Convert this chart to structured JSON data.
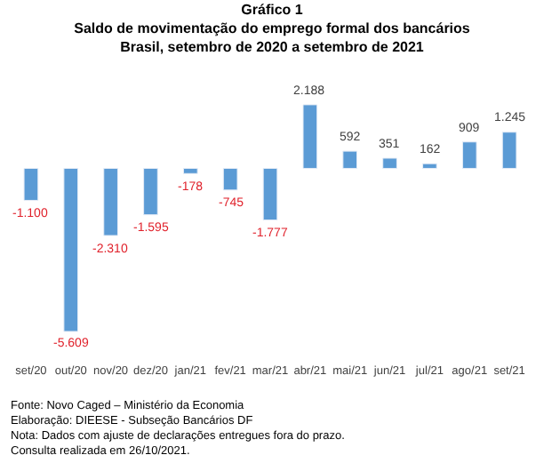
{
  "chart_data": {
    "type": "bar",
    "title": "Gráfico 1",
    "subtitle": "Saldo de movimentação do emprego formal dos bancários\nBrasil, setembro de 2020 a setembro de 2021",
    "categories": [
      "set/20",
      "out/20",
      "nov/20",
      "dez/20",
      "jan/21",
      "fev/21",
      "mar/21",
      "abr/21",
      "mai/21",
      "jun/21",
      "jul/21",
      "ago/21",
      "set/21"
    ],
    "values": [
      -1100,
      -5609,
      -2310,
      -1595,
      -178,
      -745,
      -1777,
      2188,
      592,
      351,
      162,
      909,
      1245
    ],
    "value_labels": [
      "-1.100",
      "-5.609",
      "-2.310",
      "-1.595",
      "-178",
      "-745",
      "-1.777",
      "2.188",
      "592",
      "351",
      "162",
      "909",
      "1.245"
    ],
    "color": "#5b9bd5",
    "annotations": [
      "Fonte: Novo Caged – Ministério da Economia",
      "Elaboração: DIEESE - Subseção Bancários DF",
      "Nota: Dados com ajuste de declarações entregues fora do prazo. Consulta realizada em 26/10/2021."
    ],
    "legend": false
  }
}
